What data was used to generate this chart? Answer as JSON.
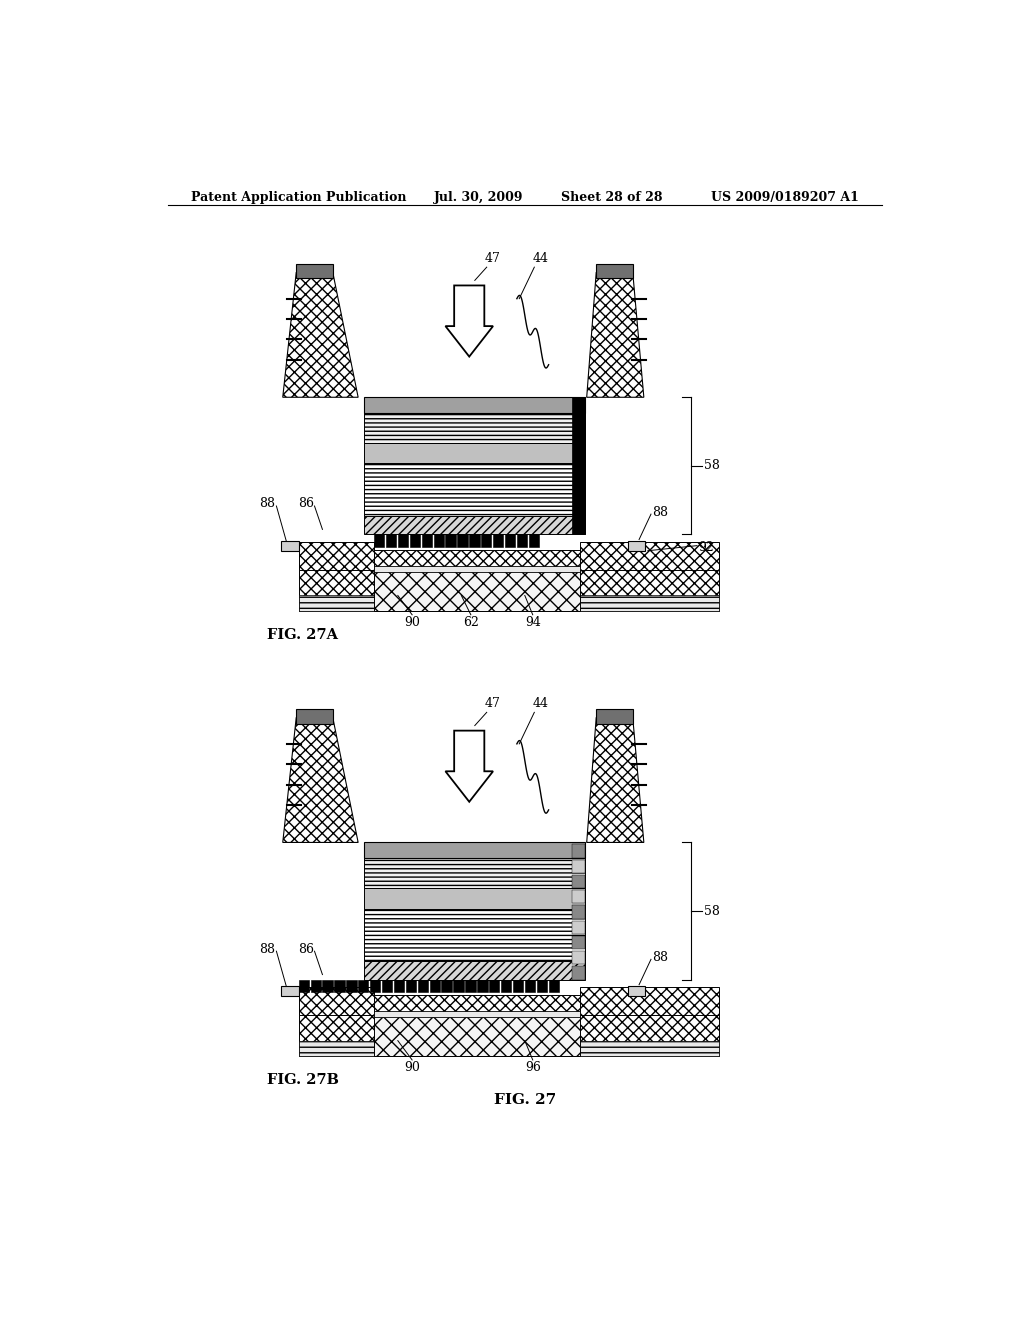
{
  "bg_color": "#ffffff",
  "header_text": "Patent Application Publication",
  "header_date": "Jul. 30, 2009",
  "header_sheet": "Sheet 28 of 28",
  "header_patent": "US 2009/0189207 A1",
  "fig_a_label": "FIG. 27A",
  "fig_b_label": "FIG. 27B",
  "fig_main_label": "FIG. 27"
}
